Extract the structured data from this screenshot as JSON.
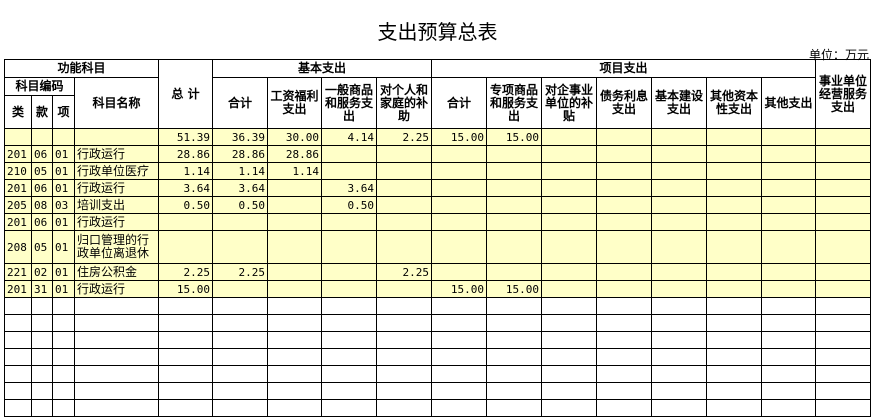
{
  "title": "支出预算总表",
  "unit": "单位：万元",
  "header": {
    "func": "功能科目",
    "code": "科目编码",
    "lei": "类",
    "kuan": "款",
    "xiang": "项",
    "name": "科目名称",
    "total": "总  计",
    "basic": "基本支出",
    "project": "项目支出",
    "biz": "事业单位经营服务支出",
    "basic_cols": [
      "合计",
      "工资福利支出",
      "一般商品和服务支出",
      "对个人和家庭的补助"
    ],
    "project_cols": [
      "合计",
      "专项商品和服务支出",
      "对企事业单位的补贴",
      "债务利息支出",
      "基本建设支出",
      "其他资本性支出",
      "其他支出"
    ]
  },
  "rows": [
    [
      "",
      "",
      "",
      "",
      "51.39",
      "36.39",
      "30.00",
      "4.14",
      "2.25",
      "15.00",
      "15.00",
      "",
      "",
      "",
      "",
      "",
      "",
      ""
    ],
    [
      "201",
      "06",
      "01",
      "行政运行",
      "28.86",
      "28.86",
      "28.86",
      "",
      "",
      "",
      "",
      "",
      "",
      "",
      "",
      "",
      "",
      ""
    ],
    [
      "210",
      "05",
      "01",
      "行政单位医疗",
      "1.14",
      "1.14",
      "1.14",
      "",
      "",
      "",
      "",
      "",
      "",
      "",
      "",
      "",
      "",
      ""
    ],
    [
      "201",
      "06",
      "01",
      "行政运行",
      "3.64",
      "3.64",
      "",
      "3.64",
      "",
      "",
      "",
      "",
      "",
      "",
      "",
      "",
      "",
      ""
    ],
    [
      "205",
      "08",
      "03",
      "培训支出",
      "0.50",
      "0.50",
      "",
      "0.50",
      "",
      "",
      "",
      "",
      "",
      "",
      "",
      "",
      "",
      ""
    ],
    [
      "201",
      "06",
      "01",
      "行政运行",
      "",
      "",
      "",
      "",
      "",
      "",
      "",
      "",
      "",
      "",
      "",
      "",
      "",
      ""
    ],
    [
      "208",
      "05",
      "01",
      "归口管理的行政单位离退休",
      "",
      "",
      "",
      "",
      "",
      "",
      "",
      "",
      "",
      "",
      "",
      "",
      "",
      ""
    ],
    [
      "221",
      "02",
      "01",
      "住房公积金",
      "2.25",
      "2.25",
      "",
      "",
      "2.25",
      "",
      "",
      "",
      "",
      "",
      "",
      "",
      "",
      ""
    ],
    [
      "201",
      "31",
      "01",
      "行政运行",
      "15.00",
      "",
      "",
      "",
      "",
      "15.00",
      "15.00",
      "",
      "",
      "",
      "",
      "",
      "",
      ""
    ]
  ]
}
